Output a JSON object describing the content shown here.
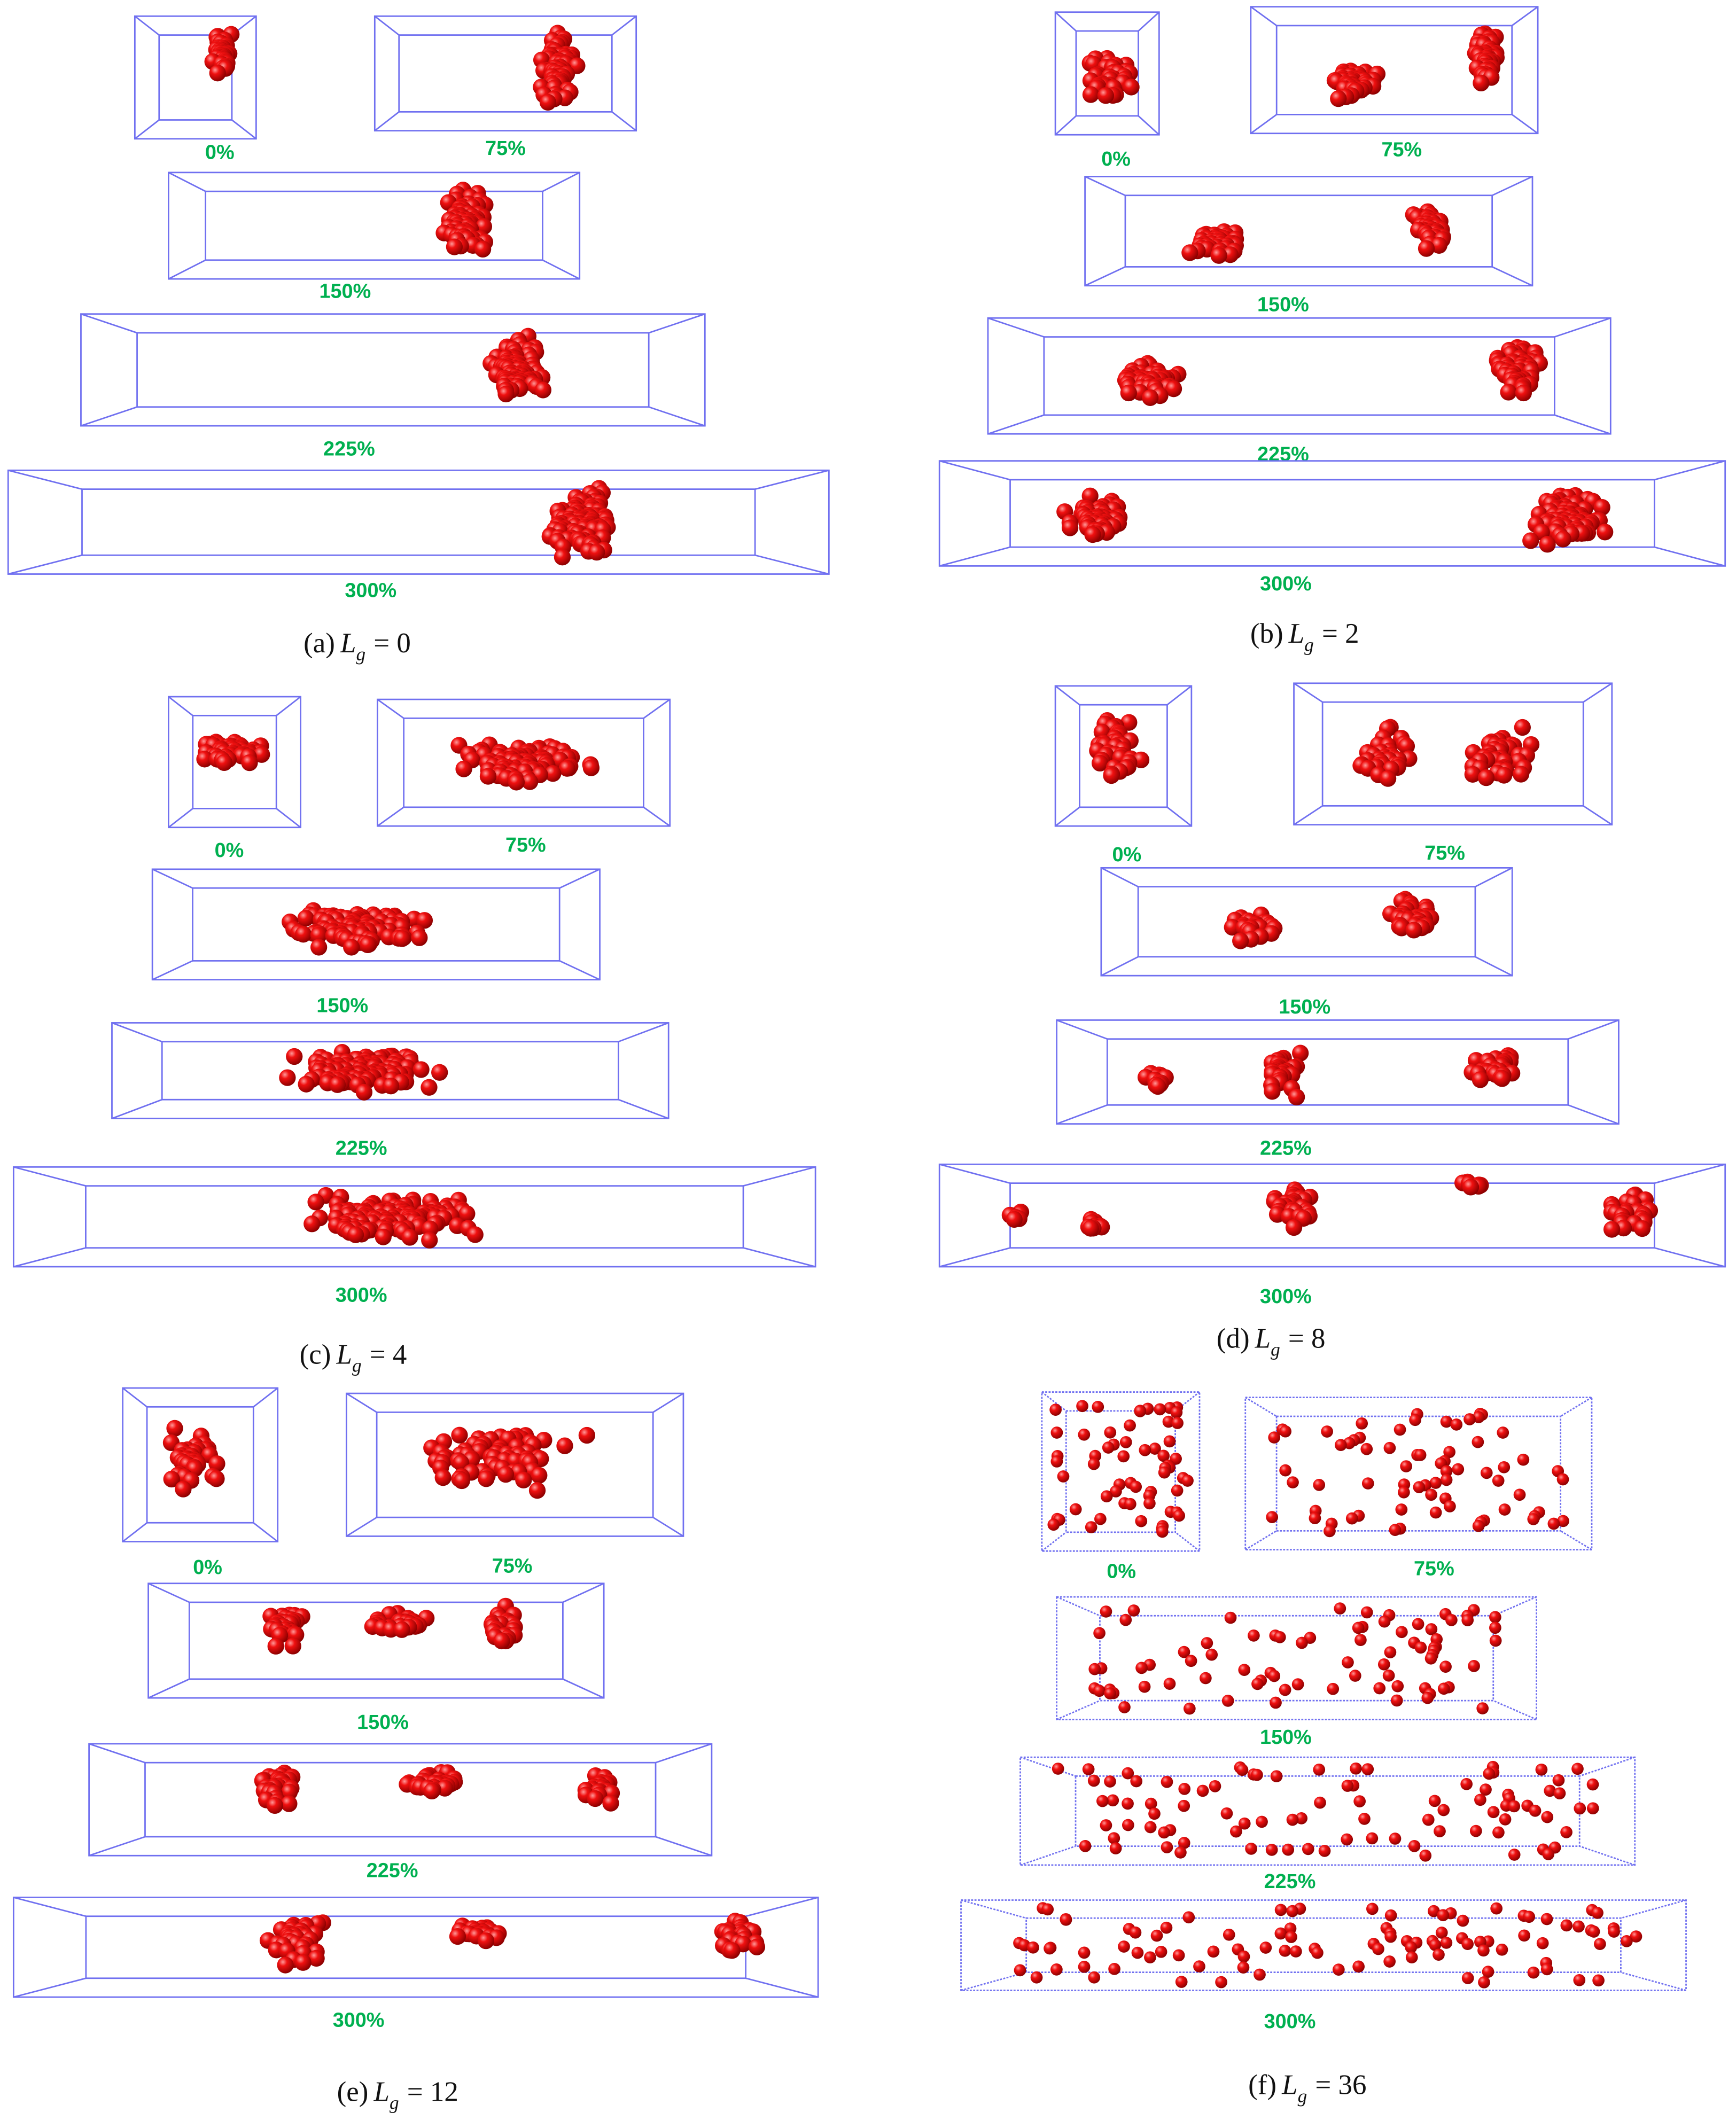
{
  "panels": [
    {
      "label": "(a)",
      "symbol": "L",
      "subscript": "g",
      "equation": "= 0",
      "strains": [
        "0%",
        "75%",
        "150%",
        "225%",
        "300%"
      ]
    },
    {
      "label": "(b)",
      "symbol": "L",
      "subscript": "g",
      "equation": "= 2",
      "strains": [
        "0%",
        "75%",
        "150%",
        "225%",
        "300%"
      ]
    },
    {
      "label": "(c)",
      "symbol": "L",
      "subscript": "g",
      "equation": "= 4",
      "strains": [
        "0%",
        "75%",
        "150%",
        "225%",
        "300%"
      ]
    },
    {
      "label": "(d)",
      "symbol": "L",
      "subscript": "g",
      "equation": "= 8",
      "strains": [
        "0%",
        "75%",
        "150%",
        "225%",
        "300%"
      ]
    },
    {
      "label": "(e)",
      "symbol": "L",
      "subscript": "g",
      "equation": "= 12",
      "strains": [
        "0%",
        "75%",
        "150%",
        "225%",
        "300%"
      ]
    },
    {
      "label": "(f)",
      "symbol": "L",
      "subscript": "g",
      "equation": "= 36",
      "strains": [
        "0%",
        "75%",
        "150%",
        "225%",
        "300%"
      ]
    }
  ]
}
